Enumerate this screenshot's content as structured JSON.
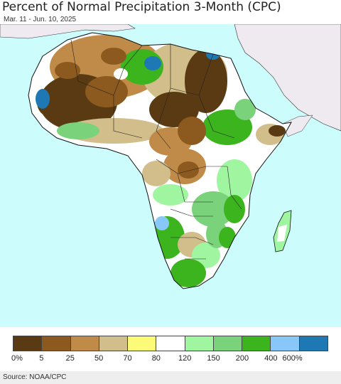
{
  "header": {
    "title": "Percent of Normal Precipitation 3-Month (CPC)",
    "subtitle": "Mar. 11 - Jun. 10, 2025"
  },
  "map": {
    "ocean_color": "#ccfcfc",
    "land_color": "#eeeaf0",
    "region": "Africa"
  },
  "legend": {
    "colors": [
      "#5a3a13",
      "#8c5a1e",
      "#c08a48",
      "#d2be8a",
      "#fbfb78",
      "#ffffff",
      "#a0f5a0",
      "#7ad27a",
      "#3cb41e",
      "#87c8f8",
      "#1e78b4"
    ],
    "labels": [
      "0%",
      "5",
      "25",
      "50",
      "70",
      "80",
      "120",
      "150",
      "200",
      "400",
      "600%"
    ]
  },
  "footer": {
    "source": "Source: NOAA/CPC"
  }
}
